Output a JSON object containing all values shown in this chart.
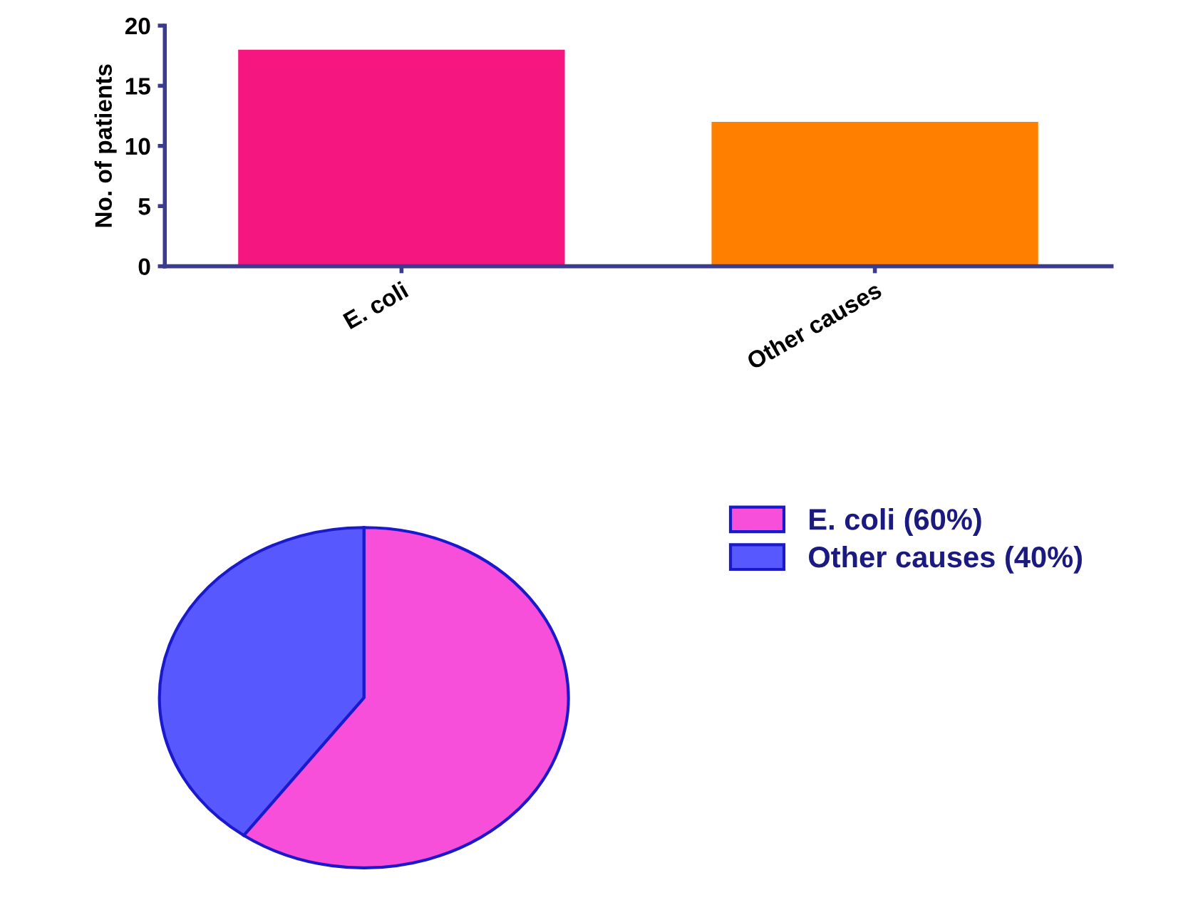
{
  "chart_data": [
    {
      "type": "bar",
      "ylabel": "No. of patients",
      "categories": [
        "E. coli",
        "Other causes"
      ],
      "values": [
        18,
        12
      ],
      "colors": [
        "#f5177f",
        "#ff8000"
      ],
      "ylim": [
        0,
        20
      ],
      "yticks": [
        0,
        5,
        10,
        15,
        20
      ],
      "grid": false
    },
    {
      "type": "pie",
      "categories": [
        "E. coli (60%)",
        "Other causes (40%)"
      ],
      "values": [
        60,
        40
      ],
      "colors": [
        "#f74fd9",
        "#5858ff"
      ],
      "legend": "top right"
    }
  ]
}
